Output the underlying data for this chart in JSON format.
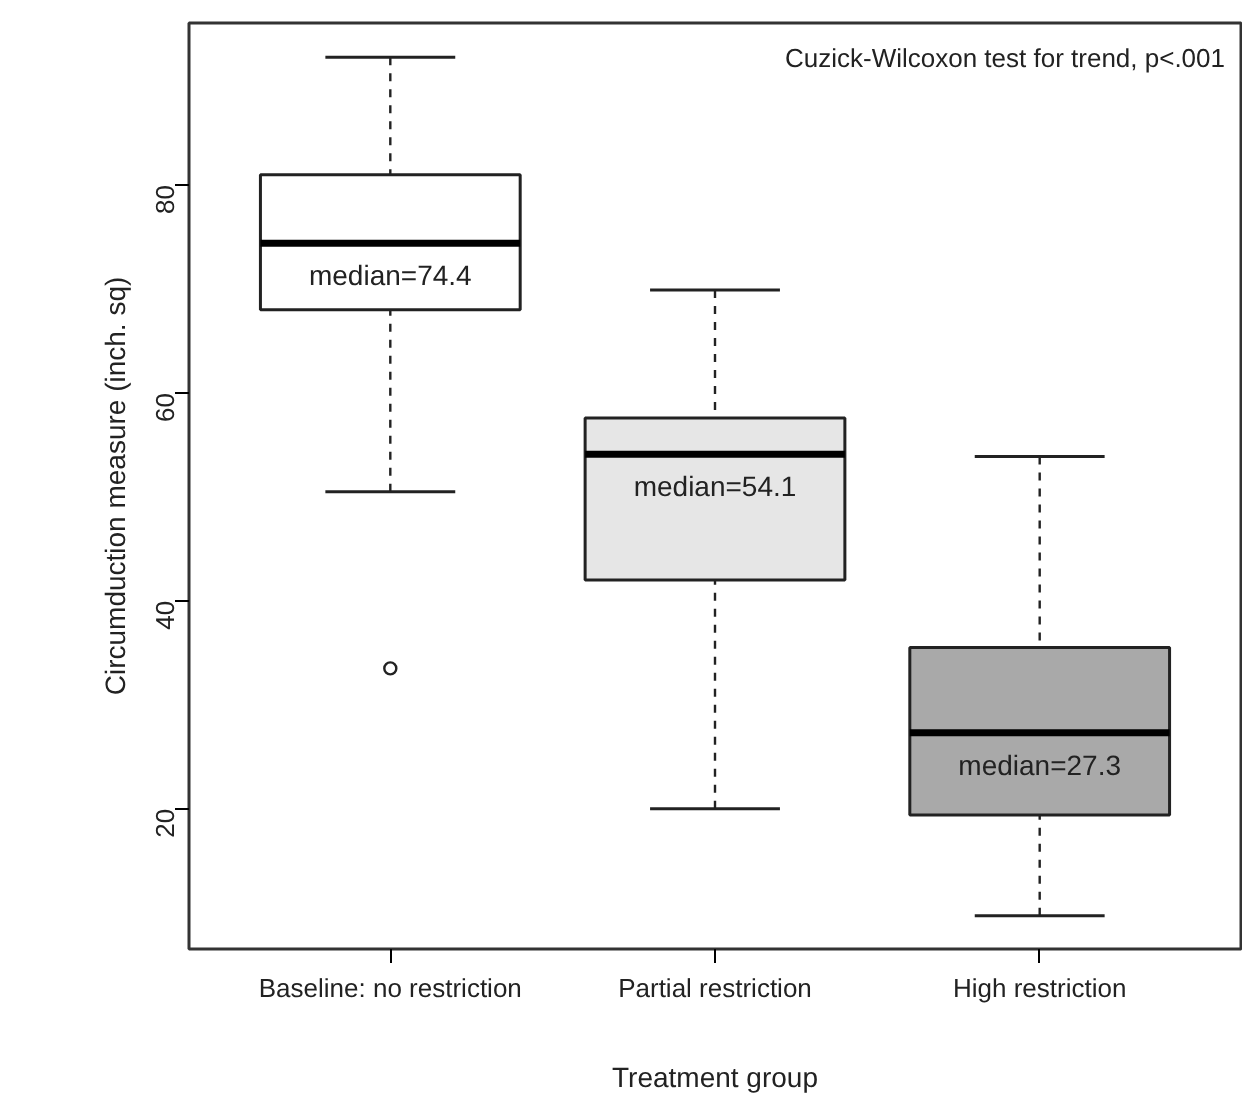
{
  "chart_data": {
    "type": "box",
    "xlabel": "Treatment group",
    "ylabel": "Circumduction measure (inch. sq)",
    "categories": [
      "Baseline: no restriction",
      "Partial restriction",
      "High restriction"
    ],
    "boxes": [
      {
        "low": 50.5,
        "q1": 68.0,
        "median": 74.4,
        "q3": 81.0,
        "high": 92.3,
        "outliers": [
          33.5
        ]
      },
      {
        "low": 20.0,
        "q1": 42.0,
        "median": 54.1,
        "q3": 57.6,
        "high": 69.9
      },
      {
        "low": 9.7,
        "q1": 19.4,
        "median": 27.3,
        "q3": 35.5,
        "high": 53.9
      }
    ],
    "colors": [
      "#ffffff",
      "#e6e6e6",
      "#a9a9a9"
    ],
    "ylim": [
      6.5,
      95.6
    ],
    "yticks": [
      20,
      40,
      60,
      80
    ],
    "grid": false,
    "annotations": [
      "Cuzick-Wilcoxon test for trend, p<.001",
      {
        "text": "median=74.4",
        "x": "Baseline: no restriction",
        "y": 74.4
      },
      {
        "text": "median=54.1",
        "x": "Partial restriction",
        "y": 54.1
      },
      {
        "text": "median=27.3",
        "x": "High restriction",
        "y": 27.3
      }
    ]
  }
}
